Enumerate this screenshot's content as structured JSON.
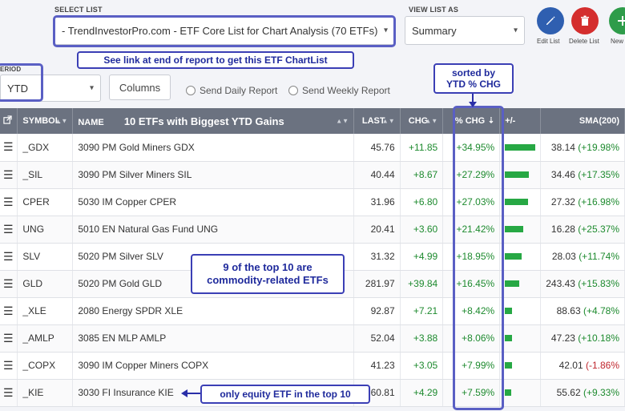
{
  "header": {
    "select_list_label": "SELECT LIST",
    "select_list_value": "- TrendInvestorPro.com - ETF Core List for Chart Analysis (70 ETFs)",
    "view_list_label": "VIEW LIST AS",
    "view_list_value": "Summary",
    "edit_list": "Edit List",
    "delete_list": "Delete List",
    "new_list": "New",
    "period_label": "ERIOD",
    "period_value": "YTD",
    "columns_button": "Columns",
    "send_daily": "Send Daily Report",
    "send_weekly": "Send Weekly Report"
  },
  "annotations": {
    "link_note": "See link at end of report to get this ETF ChartList",
    "sorted_note_line1": "sorted by",
    "sorted_note_line2": "YTD % CHG",
    "commodity_note_line1": "9 of the top 10 are",
    "commodity_note_line2": "commodity-related ETFs",
    "equity_note": "only equity ETF in the top 10"
  },
  "table": {
    "headers": {
      "symbol": "SYMBOL",
      "name": "NAME",
      "name_title": "10 ETFs with Biggest YTD Gains",
      "last": "LAST",
      "chg": "CHG",
      "pct_chg": "% CHG",
      "plus_minus": "+/-",
      "sma": "SMA(200)"
    },
    "rows": [
      {
        "symbol": "_GDX",
        "name": "3090 PM Gold Miners GDX",
        "last": "45.76",
        "chg": "+11.85",
        "pct": "+34.95%",
        "bar": 34.95,
        "sma": "38.14",
        "sma_chg": "(+19.98%",
        "sma_sign": "pos"
      },
      {
        "symbol": "_SIL",
        "name": "3090 PM Silver Miners SIL",
        "last": "40.44",
        "chg": "+8.67",
        "pct": "+27.29%",
        "bar": 27.29,
        "sma": "34.46",
        "sma_chg": "(+17.35%",
        "sma_sign": "pos"
      },
      {
        "symbol": "CPER",
        "name": "5030 IM Copper CPER",
        "last": "31.96",
        "chg": "+6.80",
        "pct": "+27.03%",
        "bar": 27.03,
        "sma": "27.32",
        "sma_chg": "(+16.98%",
        "sma_sign": "pos"
      },
      {
        "symbol": "UNG",
        "name": "5010 EN Natural Gas Fund UNG",
        "last": "20.41",
        "chg": "+3.60",
        "pct": "+21.42%",
        "bar": 21.42,
        "sma": "16.28",
        "sma_chg": "(+25.37%",
        "sma_sign": "pos"
      },
      {
        "symbol": "SLV",
        "name": "5020 PM Silver SLV",
        "last": "31.32",
        "chg": "+4.99",
        "pct": "+18.95%",
        "bar": 18.95,
        "sma": "28.03",
        "sma_chg": "(+11.74%",
        "sma_sign": "pos"
      },
      {
        "symbol": "GLD",
        "name": "5020 PM Gold GLD",
        "last": "281.97",
        "chg": "+39.84",
        "pct": "+16.45%",
        "bar": 16.45,
        "sma": "243.43",
        "sma_chg": "(+15.83%",
        "sma_sign": "pos"
      },
      {
        "symbol": "_XLE",
        "name": "2080 Energy SPDR XLE",
        "last": "92.87",
        "chg": "+7.21",
        "pct": "+8.42%",
        "bar": 8.42,
        "sma": "88.63",
        "sma_chg": "(+4.78%",
        "sma_sign": "pos"
      },
      {
        "symbol": "_AMLP",
        "name": "3085 EN MLP AMLP",
        "last": "52.04",
        "chg": "+3.88",
        "pct": "+8.06%",
        "bar": 8.06,
        "sma": "47.23",
        "sma_chg": "(+10.18%",
        "sma_sign": "pos"
      },
      {
        "symbol": "_COPX",
        "name": "3090 IM Copper Miners COPX",
        "last": "41.23",
        "chg": "+3.05",
        "pct": "+7.99%",
        "bar": 7.99,
        "sma": "42.01",
        "sma_chg": "(-1.86%",
        "sma_sign": "neg"
      },
      {
        "symbol": "_KIE",
        "name": "3030 FI Insurance KIE",
        "last": "60.81",
        "chg": "+4.29",
        "pct": "+7.59%",
        "bar": 7.59,
        "sma": "55.62",
        "sma_chg": "(+9.33%",
        "sma_sign": "pos"
      }
    ]
  },
  "colors": {
    "accent": "#3b3fb5",
    "edit": "#2f5fb0",
    "delete": "#d42e2e",
    "new": "#2e9c4a",
    "positive": "#1d8a2e",
    "negative": "#c0262d",
    "header_bg": "#6b7280"
  }
}
